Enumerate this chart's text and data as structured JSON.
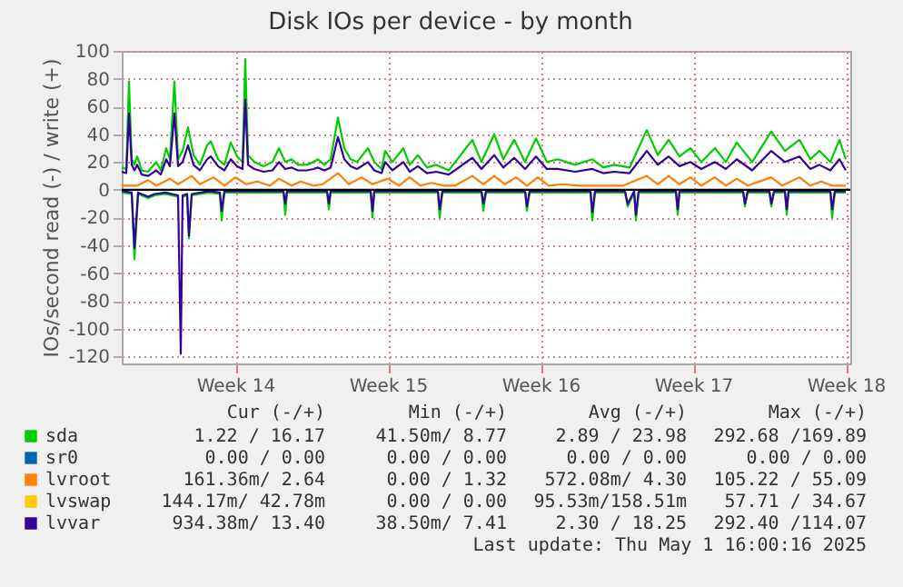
{
  "chart_data": {
    "type": "line",
    "title": "Disk IOs per device - by month",
    "ylabel": "IOs/second read (-) / write (+)",
    "xlim": [
      "2025-03-29T00:00",
      "2025-05-01T10:00"
    ],
    "xticks": [
      {
        "value": "2025-04-03T05:00",
        "label": "Week 14"
      },
      {
        "value": "2025-04-10T05:00",
        "label": "Week 15"
      },
      {
        "value": "2025-04-17T05:00",
        "label": "Week 16"
      },
      {
        "value": "2025-04-24T05:00",
        "label": "Week 17"
      },
      {
        "value": "2025-05-01T05:00",
        "label": "Week 18"
      }
    ],
    "ylim": [
      -125,
      100
    ],
    "yticks": [
      -120,
      -100,
      -80,
      -60,
      -40,
      -20,
      0,
      20,
      40,
      60,
      80,
      100
    ],
    "grid": true,
    "legend": "bottom",
    "line_style": "solid",
    "marker": "none",
    "ref_lines": [
      {
        "axis": "y",
        "value": 0,
        "color": "#000000"
      }
    ],
    "series": [
      {
        "name": "sda",
        "color": "#00cc00",
        "x": [
          "2025-03-29T00:00",
          "2025-03-29T05:00",
          "2025-03-29T08:00",
          "2025-03-29T11:00",
          "2025-03-29T14:00",
          "2025-03-29T17:00",
          "2025-03-29T22:00",
          "2025-03-30T05:00",
          "2025-03-30T14:00",
          "2025-03-30T19:00",
          "2025-03-31T01:00",
          "2025-03-31T05:00",
          "2025-03-31T10:00",
          "2025-03-31T14:00",
          "2025-03-31T19:00",
          "2025-04-01T01:00",
          "2025-04-01T07:00",
          "2025-04-01T14:00",
          "2025-04-01T22:00",
          "2025-04-02T02:00",
          "2025-04-02T10:00",
          "2025-04-02T17:00",
          "2025-04-03T00:00",
          "2025-04-03T07:00",
          "2025-04-03T13:00",
          "2025-04-03T16:00",
          "2025-04-03T19:00",
          "2025-04-04T02:00",
          "2025-04-04T12:00",
          "2025-04-04T22:00",
          "2025-04-05T05:00",
          "2025-04-05T12:00",
          "2025-04-05T19:00",
          "2025-04-06T02:00",
          "2025-04-06T12:00",
          "2025-04-06T19:00",
          "2025-04-07T00:00",
          "2025-04-07T07:00",
          "2025-04-07T14:00",
          "2025-04-07T22:00",
          "2025-04-08T05:00",
          "2025-04-08T12:00",
          "2025-04-08T19:00",
          "2025-04-09T07:00",
          "2025-04-09T14:00",
          "2025-04-09T22:00",
          "2025-04-10T02:00",
          "2025-04-10T10:00",
          "2025-04-10T22:00",
          "2025-04-11T05:00",
          "2025-04-11T14:00",
          "2025-04-12T00:00",
          "2025-04-12T10:00",
          "2025-04-13T00:00",
          "2025-04-14T02:00",
          "2025-04-14T12:00",
          "2025-04-15T02:00",
          "2025-04-15T12:00",
          "2025-04-16T00:00",
          "2025-04-16T12:00",
          "2025-04-17T00:00",
          "2025-04-17T12:00",
          "2025-04-18T00:00",
          "2025-04-18T19:00",
          "2025-04-19T14:00",
          "2025-04-20T02:00",
          "2025-04-20T14:00",
          "2025-04-21T07:00",
          "2025-04-22T02:00",
          "2025-04-22T14:00",
          "2025-04-23T02:00",
          "2025-04-23T14:00",
          "2025-04-24T02:00",
          "2025-04-24T14:00",
          "2025-04-25T05:00",
          "2025-04-25T17:00",
          "2025-04-26T05:00",
          "2025-04-26T22:00",
          "2025-04-27T19:00",
          "2025-04-28T10:00",
          "2025-04-29T02:00",
          "2025-04-29T14:00",
          "2025-04-30T00:00",
          "2025-04-30T12:00",
          "2025-04-30T22:00",
          "2025-05-01T05:00"
        ],
        "values": [
          16,
          15,
          78,
          22,
          18,
          24,
          14,
          13,
          20,
          14,
          30,
          22,
          78,
          22,
          28,
          45,
          25,
          18,
          32,
          35,
          22,
          18,
          34,
          24,
          20,
          94,
          25,
          20,
          17,
          20,
          30,
          20,
          22,
          18,
          18,
          20,
          22,
          18,
          22,
          52,
          30,
          22,
          20,
          30,
          20,
          15,
          28,
          20,
          30,
          18,
          25,
          16,
          18,
          14,
          36,
          20,
          40,
          22,
          36,
          20,
          37,
          20,
          22,
          18,
          22,
          16,
          18,
          16,
          43,
          25,
          36,
          24,
          30,
          20,
          30,
          20,
          34,
          20,
          42,
          28,
          36,
          22,
          28,
          20,
          36,
          22
        ]
      },
      {
        "color": "#00cc00",
        "x": [
          "2025-03-29T00:00",
          "2025-03-29T11:00",
          "2025-03-29T14:00",
          "2025-03-29T18:00",
          "2025-03-30T05:00",
          "2025-03-30T12:00",
          "2025-03-31T00:00",
          "2025-03-31T14:00",
          "2025-03-31T17:00",
          "2025-03-31T19:00",
          "2025-04-01T00:00",
          "2025-04-01T02:00",
          "2025-04-01T05:00",
          "2025-04-02T00:00",
          "2025-04-02T12:00",
          "2025-04-02T14:00",
          "2025-04-02T17:00",
          "2025-04-04T00:00",
          "2025-04-05T10:00",
          "2025-04-05T12:00",
          "2025-04-05T14:00",
          "2025-04-07T10:00",
          "2025-04-07T12:00",
          "2025-04-07T14:00",
          "2025-04-09T10:00",
          "2025-04-09T12:00",
          "2025-04-09T14:00",
          "2025-04-12T12:00",
          "2025-04-12T14:00",
          "2025-04-12T17:00",
          "2025-04-14T12:00",
          "2025-04-14T14:00",
          "2025-04-14T17:00",
          "2025-04-16T12:00",
          "2025-04-16T14:00",
          "2025-04-16T17:00",
          "2025-04-19T12:00",
          "2025-04-19T14:00",
          "2025-04-19T17:00",
          "2025-04-21T02:00",
          "2025-04-21T05:00",
          "2025-04-21T12:00",
          "2025-04-21T14:00",
          "2025-04-21T17:00",
          "2025-04-23T10:00",
          "2025-04-23T12:00",
          "2025-04-23T14:00",
          "2025-04-26T12:00",
          "2025-04-26T14:00",
          "2025-04-26T17:00",
          "2025-04-27T17:00",
          "2025-04-27T19:00",
          "2025-04-27T22:00",
          "2025-04-28T10:00",
          "2025-04-28T12:00",
          "2025-04-28T14:00",
          "2025-04-30T12:00",
          "2025-04-30T14:00",
          "2025-04-30T17:00",
          "2025-05-01T05:00"
        ],
        "values": [
          -2,
          -3,
          -50,
          -3,
          -6,
          -4,
          -3,
          -5,
          null,
          -5,
          -4,
          -35,
          -4,
          -2,
          -3,
          -22,
          -2,
          -2,
          -2,
          -18,
          -2,
          -2,
          -14,
          -2,
          -2,
          -20,
          -2,
          -2,
          -20,
          -2,
          -2,
          -15,
          -2,
          -2,
          -15,
          -2,
          -2,
          -22,
          -2,
          -2,
          -12,
          -2,
          -22,
          -2,
          -2,
          -18,
          -2,
          -2,
          -12,
          -2,
          -2,
          -12,
          -2,
          -2,
          -18,
          -2,
          -2,
          -20,
          -2,
          -2
        ]
      },
      {
        "name": "sr0",
        "color": "#0066b3"
      },
      {
        "name": "lvroot",
        "color": "#ff8000",
        "x": [
          "2025-03-29T00:00",
          "2025-03-29T17:00",
          "2025-03-30T05:00",
          "2025-03-30T14:00",
          "2025-03-31T05:00",
          "2025-03-31T14:00",
          "2025-04-01T05:00",
          "2025-04-01T14:00",
          "2025-04-02T05:00",
          "2025-04-02T17:00",
          "2025-04-03T05:00",
          "2025-04-03T17:00",
          "2025-04-04T05:00",
          "2025-04-04T19:00",
          "2025-04-05T05:00",
          "2025-04-05T19:00",
          "2025-04-06T05:00",
          "2025-04-06T19:00",
          "2025-04-07T05:00",
          "2025-04-07T22:00",
          "2025-04-08T10:00",
          "2025-04-09T00:00",
          "2025-04-09T12:00",
          "2025-04-10T05:00",
          "2025-04-10T17:00",
          "2025-04-11T05:00",
          "2025-04-11T17:00",
          "2025-04-12T05:00",
          "2025-04-12T19:00",
          "2025-04-13T07:00",
          "2025-04-14T02:00",
          "2025-04-14T14:00",
          "2025-04-15T02:00",
          "2025-04-15T14:00",
          "2025-04-16T02:00",
          "2025-04-16T14:00",
          "2025-04-17T02:00",
          "2025-04-17T14:00",
          "2025-04-18T05:00",
          "2025-04-19T00:00",
          "2025-04-20T00:00",
          "2025-04-21T00:00",
          "2025-04-22T02:00",
          "2025-04-22T14:00",
          "2025-04-23T02:00",
          "2025-04-23T14:00",
          "2025-04-24T02:00",
          "2025-04-24T14:00",
          "2025-04-25T05:00",
          "2025-04-25T17:00",
          "2025-04-26T05:00",
          "2025-04-26T17:00",
          "2025-04-27T19:00",
          "2025-04-28T07:00",
          "2025-04-29T02:00",
          "2025-04-29T14:00",
          "2025-04-30T02:00",
          "2025-04-30T14:00",
          "2025-05-01T05:00"
        ],
        "values": [
          3,
          3,
          7,
          3,
          8,
          4,
          10,
          4,
          9,
          3,
          9,
          4,
          6,
          3,
          8,
          3,
          6,
          3,
          4,
          12,
          4,
          9,
          4,
          8,
          3,
          9,
          3,
          5,
          3,
          3,
          10,
          4,
          10,
          4,
          9,
          3,
          9,
          3,
          4,
          3,
          3,
          3,
          10,
          4,
          10,
          4,
          9,
          3,
          9,
          3,
          8,
          3,
          9,
          3,
          9,
          3,
          6,
          3,
          3
        ]
      },
      {
        "name": "lvswap",
        "color": "#ffcc00"
      },
      {
        "name": "lvvar",
        "color": "#330099",
        "x": [
          "2025-03-29T00:00",
          "2025-03-29T05:00",
          "2025-03-29T08:00",
          "2025-03-29T11:00",
          "2025-03-29T14:00",
          "2025-03-29T17:00",
          "2025-03-29T22:00",
          "2025-03-30T05:00",
          "2025-03-30T14:00",
          "2025-03-30T19:00",
          "2025-03-31T01:00",
          "2025-03-31T05:00",
          "2025-03-31T10:00",
          "2025-03-31T14:00",
          "2025-03-31T19:00",
          "2025-04-01T01:00",
          "2025-04-01T07:00",
          "2025-04-01T14:00",
          "2025-04-01T22:00",
          "2025-04-02T02:00",
          "2025-04-02T10:00",
          "2025-04-02T17:00",
          "2025-04-03T00:00",
          "2025-04-03T07:00",
          "2025-04-03T13:00",
          "2025-04-03T16:00",
          "2025-04-03T19:00",
          "2025-04-04T02:00",
          "2025-04-04T12:00",
          "2025-04-04T22:00",
          "2025-04-05T05:00",
          "2025-04-05T12:00",
          "2025-04-05T19:00",
          "2025-04-06T02:00",
          "2025-04-06T12:00",
          "2025-04-06T19:00",
          "2025-04-07T00:00",
          "2025-04-07T07:00",
          "2025-04-07T14:00",
          "2025-04-07T22:00",
          "2025-04-08T05:00",
          "2025-04-08T12:00",
          "2025-04-08T19:00",
          "2025-04-09T07:00",
          "2025-04-09T14:00",
          "2025-04-09T22:00",
          "2025-04-10T02:00",
          "2025-04-10T10:00",
          "2025-04-10T22:00",
          "2025-04-11T05:00",
          "2025-04-11T14:00",
          "2025-04-12T00:00",
          "2025-04-12T10:00",
          "2025-04-13T00:00",
          "2025-04-14T02:00",
          "2025-04-14T12:00",
          "2025-04-15T02:00",
          "2025-04-15T12:00",
          "2025-04-16T00:00",
          "2025-04-16T12:00",
          "2025-04-17T00:00",
          "2025-04-17T12:00",
          "2025-04-18T00:00",
          "2025-04-18T19:00",
          "2025-04-19T14:00",
          "2025-04-20T02:00",
          "2025-04-20T14:00",
          "2025-04-21T07:00",
          "2025-04-22T02:00",
          "2025-04-22T14:00",
          "2025-04-23T02:00",
          "2025-04-23T14:00",
          "2025-04-24T02:00",
          "2025-04-24T14:00",
          "2025-04-25T05:00",
          "2025-04-25T17:00",
          "2025-04-26T05:00",
          "2025-04-26T22:00",
          "2025-04-27T19:00",
          "2025-04-28T10:00",
          "2025-04-29T02:00",
          "2025-04-29T14:00",
          "2025-04-30T00:00",
          "2025-04-30T12:00",
          "2025-04-30T22:00",
          "2025-05-01T05:00"
        ],
        "values": [
          13,
          12,
          55,
          18,
          14,
          18,
          11,
          10,
          14,
          11,
          22,
          17,
          55,
          17,
          20,
          32,
          18,
          14,
          22,
          24,
          17,
          14,
          22,
          17,
          15,
          65,
          18,
          15,
          13,
          14,
          20,
          15,
          16,
          14,
          14,
          15,
          16,
          14,
          16,
          38,
          22,
          17,
          15,
          20,
          14,
          12,
          20,
          14,
          20,
          13,
          17,
          12,
          13,
          11,
          23,
          15,
          25,
          16,
          23,
          15,
          24,
          15,
          15,
          13,
          15,
          12,
          13,
          12,
          28,
          18,
          24,
          17,
          20,
          15,
          20,
          15,
          22,
          14,
          28,
          20,
          24,
          15,
          18,
          14,
          22,
          14
        ]
      },
      {
        "color": "#330099",
        "x": [
          "2025-03-29T00:00",
          "2025-03-29T11:00",
          "2025-03-29T14:00",
          "2025-03-29T18:00",
          "2025-03-30T05:00",
          "2025-03-30T12:00",
          "2025-03-31T00:00",
          "2025-03-31T14:00",
          "2025-03-31T17:00",
          "2025-03-31T19:00",
          "2025-04-01T00:00",
          "2025-04-01T02:00",
          "2025-04-01T05:00",
          "2025-04-02T00:00",
          "2025-04-02T12:00",
          "2025-04-02T14:00",
          "2025-04-02T17:00",
          "2025-04-04T00:00",
          "2025-04-05T10:00",
          "2025-04-05T12:00",
          "2025-04-05T14:00",
          "2025-04-07T10:00",
          "2025-04-07T12:00",
          "2025-04-07T14:00",
          "2025-04-09T10:00",
          "2025-04-09T12:00",
          "2025-04-09T14:00",
          "2025-04-12T12:00",
          "2025-04-12T14:00",
          "2025-04-12T17:00",
          "2025-04-14T12:00",
          "2025-04-14T14:00",
          "2025-04-14T17:00",
          "2025-04-16T12:00",
          "2025-04-16T14:00",
          "2025-04-16T17:00",
          "2025-04-19T12:00",
          "2025-04-19T14:00",
          "2025-04-19T17:00",
          "2025-04-21T02:00",
          "2025-04-21T05:00",
          "2025-04-21T12:00",
          "2025-04-21T14:00",
          "2025-04-21T17:00",
          "2025-04-23T10:00",
          "2025-04-23T12:00",
          "2025-04-23T14:00",
          "2025-04-26T12:00",
          "2025-04-26T14:00",
          "2025-04-26T17:00",
          "2025-04-27T17:00",
          "2025-04-27T19:00",
          "2025-04-27T22:00",
          "2025-04-28T10:00",
          "2025-04-28T12:00",
          "2025-04-28T14:00",
          "2025-04-30T12:00",
          "2025-04-30T14:00",
          "2025-04-30T17:00",
          "2025-05-01T05:00"
        ],
        "values": [
          -1,
          -2,
          -42,
          -2,
          -5,
          -3,
          -2,
          -4,
          -118,
          -4,
          -3,
          -33,
          -3,
          -1,
          -2,
          -15,
          -1,
          -1,
          -1,
          -10,
          -1,
          -1,
          -10,
          -1,
          -1,
          -15,
          -1,
          -1,
          -14,
          -1,
          -1,
          -10,
          -1,
          -1,
          -12,
          -1,
          -1,
          -16,
          -1,
          -1,
          -10,
          -1,
          -18,
          -1,
          -1,
          -14,
          -1,
          -1,
          -10,
          -1,
          -1,
          -10,
          -1,
          -1,
          -14,
          -1,
          -1,
          -14,
          -1,
          -1
        ]
      }
    ],
    "annotations": [
      "Cur (-/+)",
      "Min (-/+)",
      "Avg (-/+)",
      "Max (-/+)",
      "1.22 / 16.17",
      "41.50m/  8.77",
      "2.89 / 23.98",
      "292.68 /169.89",
      "0.00 /  0.00",
      "0.00 /  0.00",
      "0.00 /  0.00",
      "0.00 /  0.00",
      "161.36m/  2.64",
      "0.00 /  1.32",
      "572.08m/  4.30",
      "105.22 / 55.09",
      "144.17m/ 42.78m",
      "0.00 /  0.00",
      "95.53m/158.51m",
      "57.71 / 34.67",
      "934.38m/ 13.40",
      "38.50m/  7.41",
      "2.30 / 18.25",
      "292.40 /114.07",
      "Last update: Thu May  1 16:00:16 2025"
    ]
  }
}
